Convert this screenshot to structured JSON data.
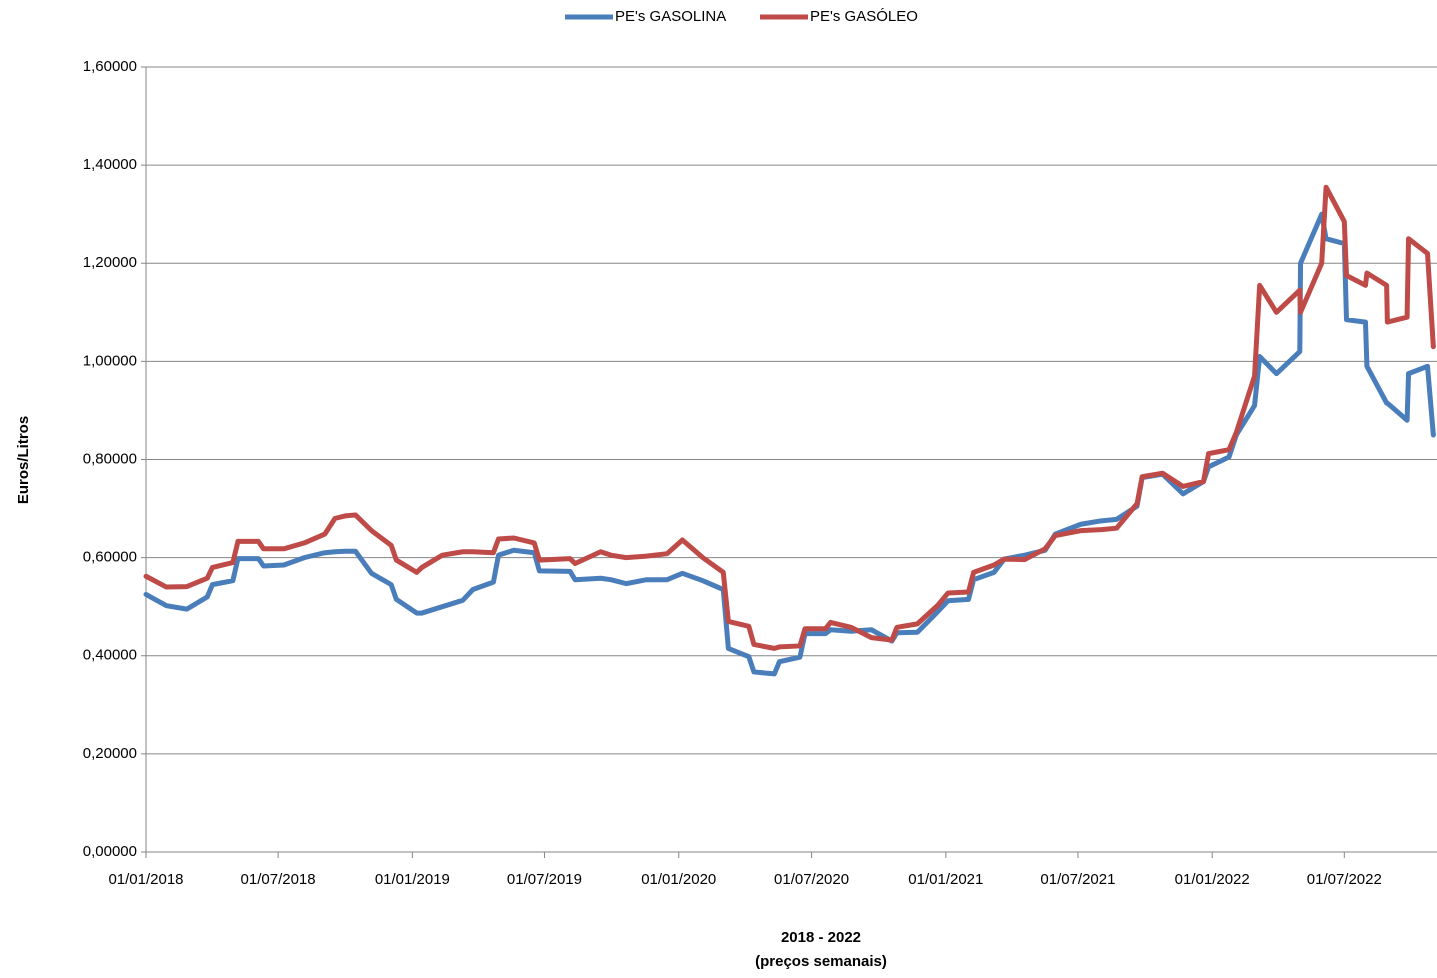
{
  "chart_data": {
    "type": "line",
    "ylabel": "Euros/Litros",
    "xlabel": "2018 - 2022",
    "xlabel_note": "(preços semanais)",
    "grid": true,
    "legend": "top",
    "xlim": [
      "01/01/2018",
      "05/11/2022"
    ],
    "xticks": [
      "01/01/2018",
      "01/07/2018",
      "01/01/2019",
      "01/07/2019",
      "01/01/2020",
      "01/07/2020",
      "01/01/2021",
      "01/07/2021",
      "01/01/2022",
      "01/07/2022"
    ],
    "ylim": [
      0,
      1.6
    ],
    "yticks": [
      {
        "value": 0,
        "label": "0,00000"
      },
      {
        "value": 0.2,
        "label": "0,20000"
      },
      {
        "value": 0.4,
        "label": "0,40000"
      },
      {
        "value": 0.6,
        "label": "0,60000"
      },
      {
        "value": 0.8,
        "label": "0,80000"
      },
      {
        "value": 1.0,
        "label": "1,00000"
      },
      {
        "value": 1.2,
        "label": "1,20000"
      },
      {
        "value": 1.4,
        "label": "1,40000"
      },
      {
        "value": 1.6,
        "label": "1,60000"
      }
    ],
    "x": [
      "01/01/2018",
      "29/01/2018",
      "26/02/2018",
      "26/03/2018",
      "02/04/2018",
      "30/04/2018",
      "07/05/2018",
      "04/06/2018",
      "11/06/2018",
      "09/07/2018",
      "06/08/2018",
      "03/09/2018",
      "17/09/2018",
      "01/10/2018",
      "15/10/2018",
      "06/11/2018",
      "03/12/2018",
      "10/12/2018",
      "07/01/2019",
      "14/01/2019",
      "11/02/2019",
      "11/03/2019",
      "25/03/2019",
      "22/04/2019",
      "29/04/2019",
      "20/05/2019",
      "17/06/2019",
      "24/06/2019",
      "05/08/2019",
      "12/08/2019",
      "16/09/2019",
      "30/09/2019",
      "21/10/2019",
      "18/11/2019",
      "16/12/2019",
      "06/01/2020",
      "03/02/2020",
      "02/03/2020",
      "09/03/2020",
      "06/04/2020",
      "13/04/2020",
      "11/05/2020",
      "18/05/2020",
      "15/06/2020",
      "22/06/2020",
      "20/07/2020",
      "27/07/2020",
      "24/08/2020",
      "21/09/2020",
      "19/10/2020",
      "26/10/2020",
      "23/11/2020",
      "21/12/2020",
      "04/01/2021",
      "01/02/2021",
      "08/02/2021",
      "08/03/2021",
      "22/03/2021",
      "19/04/2021",
      "17/05/2021",
      "31/05/2021",
      "05/07/2021",
      "02/08/2021",
      "23/08/2021",
      "20/09/2021",
      "27/09/2021",
      "25/10/2021",
      "22/11/2021",
      "20/12/2021",
      "27/12/2021",
      "24/01/2022",
      "03/02/2022",
      "28/02/2022",
      "07/03/2022",
      "30/03/2022",
      "01/05/2022",
      "02/05/2022",
      "31/05/2022",
      "06/06/2022",
      "01/07/2022",
      "04/07/2022",
      "30/07/2022",
      "01/08/2022",
      "28/08/2022",
      "29/08/2022",
      "25/09/2022",
      "27/09/2022",
      "23/10/2022",
      "31/10/2022"
    ],
    "series": [
      {
        "name": "PE's GASOLINA",
        "color": "#4a7ebb",
        "values": [
          0.525,
          0.502,
          0.495,
          0.52,
          0.545,
          0.553,
          0.598,
          0.598,
          0.583,
          0.585,
          0.6,
          0.61,
          0.612,
          0.613,
          0.613,
          0.568,
          0.545,
          0.515,
          0.487,
          0.487,
          0.5,
          0.513,
          0.535,
          0.55,
          0.605,
          0.615,
          0.61,
          0.573,
          0.572,
          0.555,
          0.558,
          0.555,
          0.547,
          0.555,
          0.555,
          0.568,
          0.553,
          0.535,
          0.415,
          0.398,
          0.367,
          0.363,
          0.388,
          0.397,
          0.445,
          0.445,
          0.453,
          0.45,
          0.453,
          0.43,
          0.447,
          0.448,
          0.49,
          0.512,
          0.515,
          0.555,
          0.57,
          0.597,
          0.605,
          0.615,
          0.648,
          0.668,
          0.675,
          0.678,
          0.705,
          0.763,
          0.77,
          0.73,
          0.755,
          0.785,
          0.805,
          0.85,
          0.91,
          1.01,
          0.975,
          1.02,
          1.2,
          1.3,
          1.25,
          1.24,
          1.085,
          1.08,
          0.99,
          0.915,
          0.915,
          0.88,
          0.975,
          0.99,
          0.85
        ]
      },
      {
        "name": "PE's GASÓLEO",
        "color": "#be4b48",
        "values": [
          0.562,
          0.54,
          0.541,
          0.558,
          0.58,
          0.59,
          0.633,
          0.633,
          0.618,
          0.618,
          0.63,
          0.648,
          0.68,
          0.685,
          0.687,
          0.655,
          0.625,
          0.595,
          0.57,
          0.58,
          0.605,
          0.612,
          0.612,
          0.61,
          0.638,
          0.64,
          0.63,
          0.595,
          0.598,
          0.588,
          0.612,
          0.605,
          0.6,
          0.603,
          0.608,
          0.636,
          0.6,
          0.57,
          0.47,
          0.46,
          0.423,
          0.415,
          0.418,
          0.42,
          0.455,
          0.455,
          0.468,
          0.458,
          0.437,
          0.432,
          0.458,
          0.465,
          0.503,
          0.528,
          0.53,
          0.57,
          0.585,
          0.597,
          0.596,
          0.618,
          0.645,
          0.655,
          0.657,
          0.66,
          0.71,
          0.765,
          0.772,
          0.745,
          0.755,
          0.812,
          0.82,
          0.855,
          0.97,
          1.155,
          1.1,
          1.145,
          1.1,
          1.2,
          1.355,
          1.285,
          1.175,
          1.155,
          1.18,
          1.155,
          1.08,
          1.09,
          1.25,
          1.22,
          1.03
        ]
      }
    ]
  }
}
